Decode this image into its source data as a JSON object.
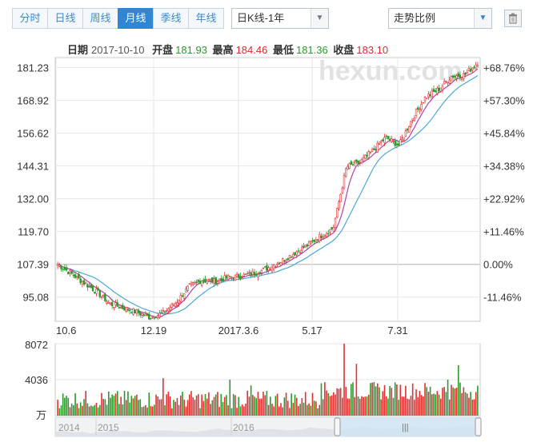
{
  "toolbar": {
    "tabs": [
      "分时",
      "日线",
      "周线",
      "月线",
      "季线",
      "年线"
    ],
    "active_tab": 3,
    "period_select": "日K线-1年",
    "indicator_select": "走势比例",
    "trash_icon": "trash-icon"
  },
  "info": {
    "date_label": "日期",
    "date": "2017-10-10",
    "open_label": "开盘",
    "open": "181.93",
    "high_label": "最高",
    "high": "184.46",
    "low_label": "最低",
    "low": "181.36",
    "close_label": "收盘",
    "close": "183.10"
  },
  "watermark": "hexun.com",
  "colors": {
    "up": "#e03030",
    "down": "#2a9a2a",
    "ma1": "#b040b0",
    "ma2": "#4aa8d8",
    "grid": "#e6e6e6",
    "baseline": "#c8c8c8"
  },
  "chart_data": [
    {
      "type": "candlestick",
      "title": "",
      "y_ticks_left": [
        "181.23",
        "168.92",
        "156.62",
        "144.31",
        "132.00",
        "119.70",
        "107.39",
        "95.08"
      ],
      "y_ticks_right": [
        "+68.76%",
        "+57.30%",
        "+45.84%",
        "+34.38%",
        "+22.92%",
        "+11.46%",
        "0.00%",
        "-11.46%"
      ],
      "baseline": 107.39,
      "ylim": [
        86.0,
        185.0
      ],
      "x_ticks": [
        "10.6",
        "12.19",
        "2017.3.6",
        "5.17",
        "7.31"
      ],
      "close_path": [
        107.4,
        104.0,
        100.5,
        97.0,
        92.5,
        91.0,
        89.5,
        87.5,
        89.0,
        93.0,
        99.0,
        101.5,
        101.0,
        102.5,
        103.0,
        104.0,
        106.0,
        108.5,
        111.5,
        114.5,
        118.0,
        121.0,
        144.0,
        145.5,
        150.0,
        155.0,
        152.0,
        162.0,
        170.0,
        173.0,
        178.0,
        178.5,
        183.1
      ],
      "series": [
        {
          "name": "",
          "kind": "ma-short"
        },
        {
          "name": "",
          "kind": "ma-long"
        }
      ]
    },
    {
      "type": "bar",
      "title": "",
      "y_ticks": [
        "8072",
        "4036"
      ],
      "unit_label": "万",
      "ylim": [
        0,
        8072
      ]
    }
  ],
  "navigator": {
    "year_labels": [
      "2014",
      "2015",
      "2016"
    ],
    "handle_grip": "|||"
  }
}
